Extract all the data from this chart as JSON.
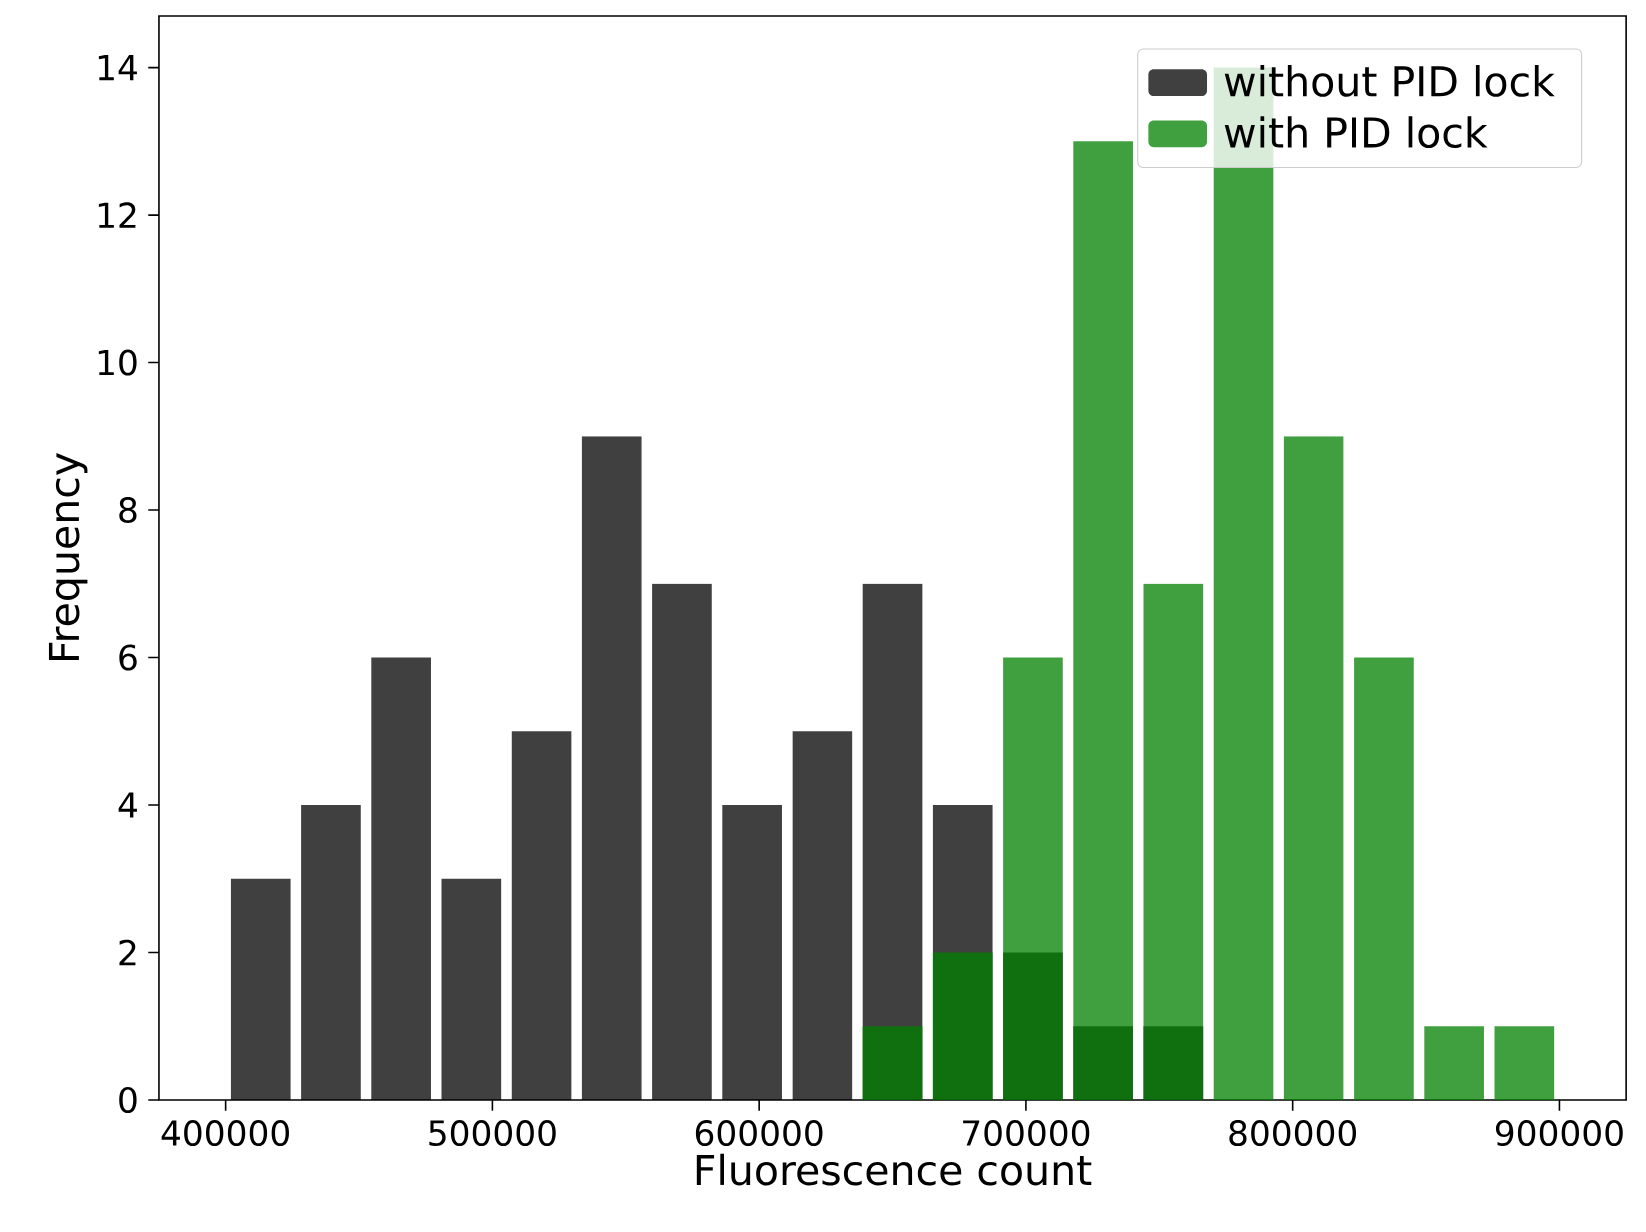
{
  "chart_data": {
    "type": "histogram",
    "xlabel": "Fluorescence count",
    "ylabel": "Frequency",
    "bins": [
      400000,
      426316,
      452632,
      478947,
      505263,
      531579,
      557895,
      584211,
      610526,
      636842,
      663158,
      689474,
      715789,
      742105,
      768421,
      794737,
      821053,
      847368,
      873684,
      900000
    ],
    "series": [
      {
        "name": "without PID lock",
        "color": "#404040",
        "values": [
          3,
          4,
          6,
          3,
          5,
          9,
          7,
          4,
          5,
          7,
          4,
          2,
          1,
          1,
          0,
          0,
          0,
          0,
          0
        ]
      },
      {
        "name": "with PID lock",
        "color": "#40a040",
        "values": [
          0,
          0,
          0,
          0,
          0,
          0,
          0,
          0,
          0,
          1,
          2,
          6,
          13,
          7,
          14,
          9,
          6,
          1,
          1
        ]
      }
    ],
    "xlim": [
      375000,
      925000
    ],
    "ylim": [
      0,
      14.7
    ],
    "xticks": [
      400000,
      500000,
      600000,
      700000,
      800000,
      900000
    ],
    "yticks": [
      0,
      2,
      4,
      6,
      8,
      10,
      12,
      14
    ],
    "legend": "top right",
    "grid": false
  }
}
